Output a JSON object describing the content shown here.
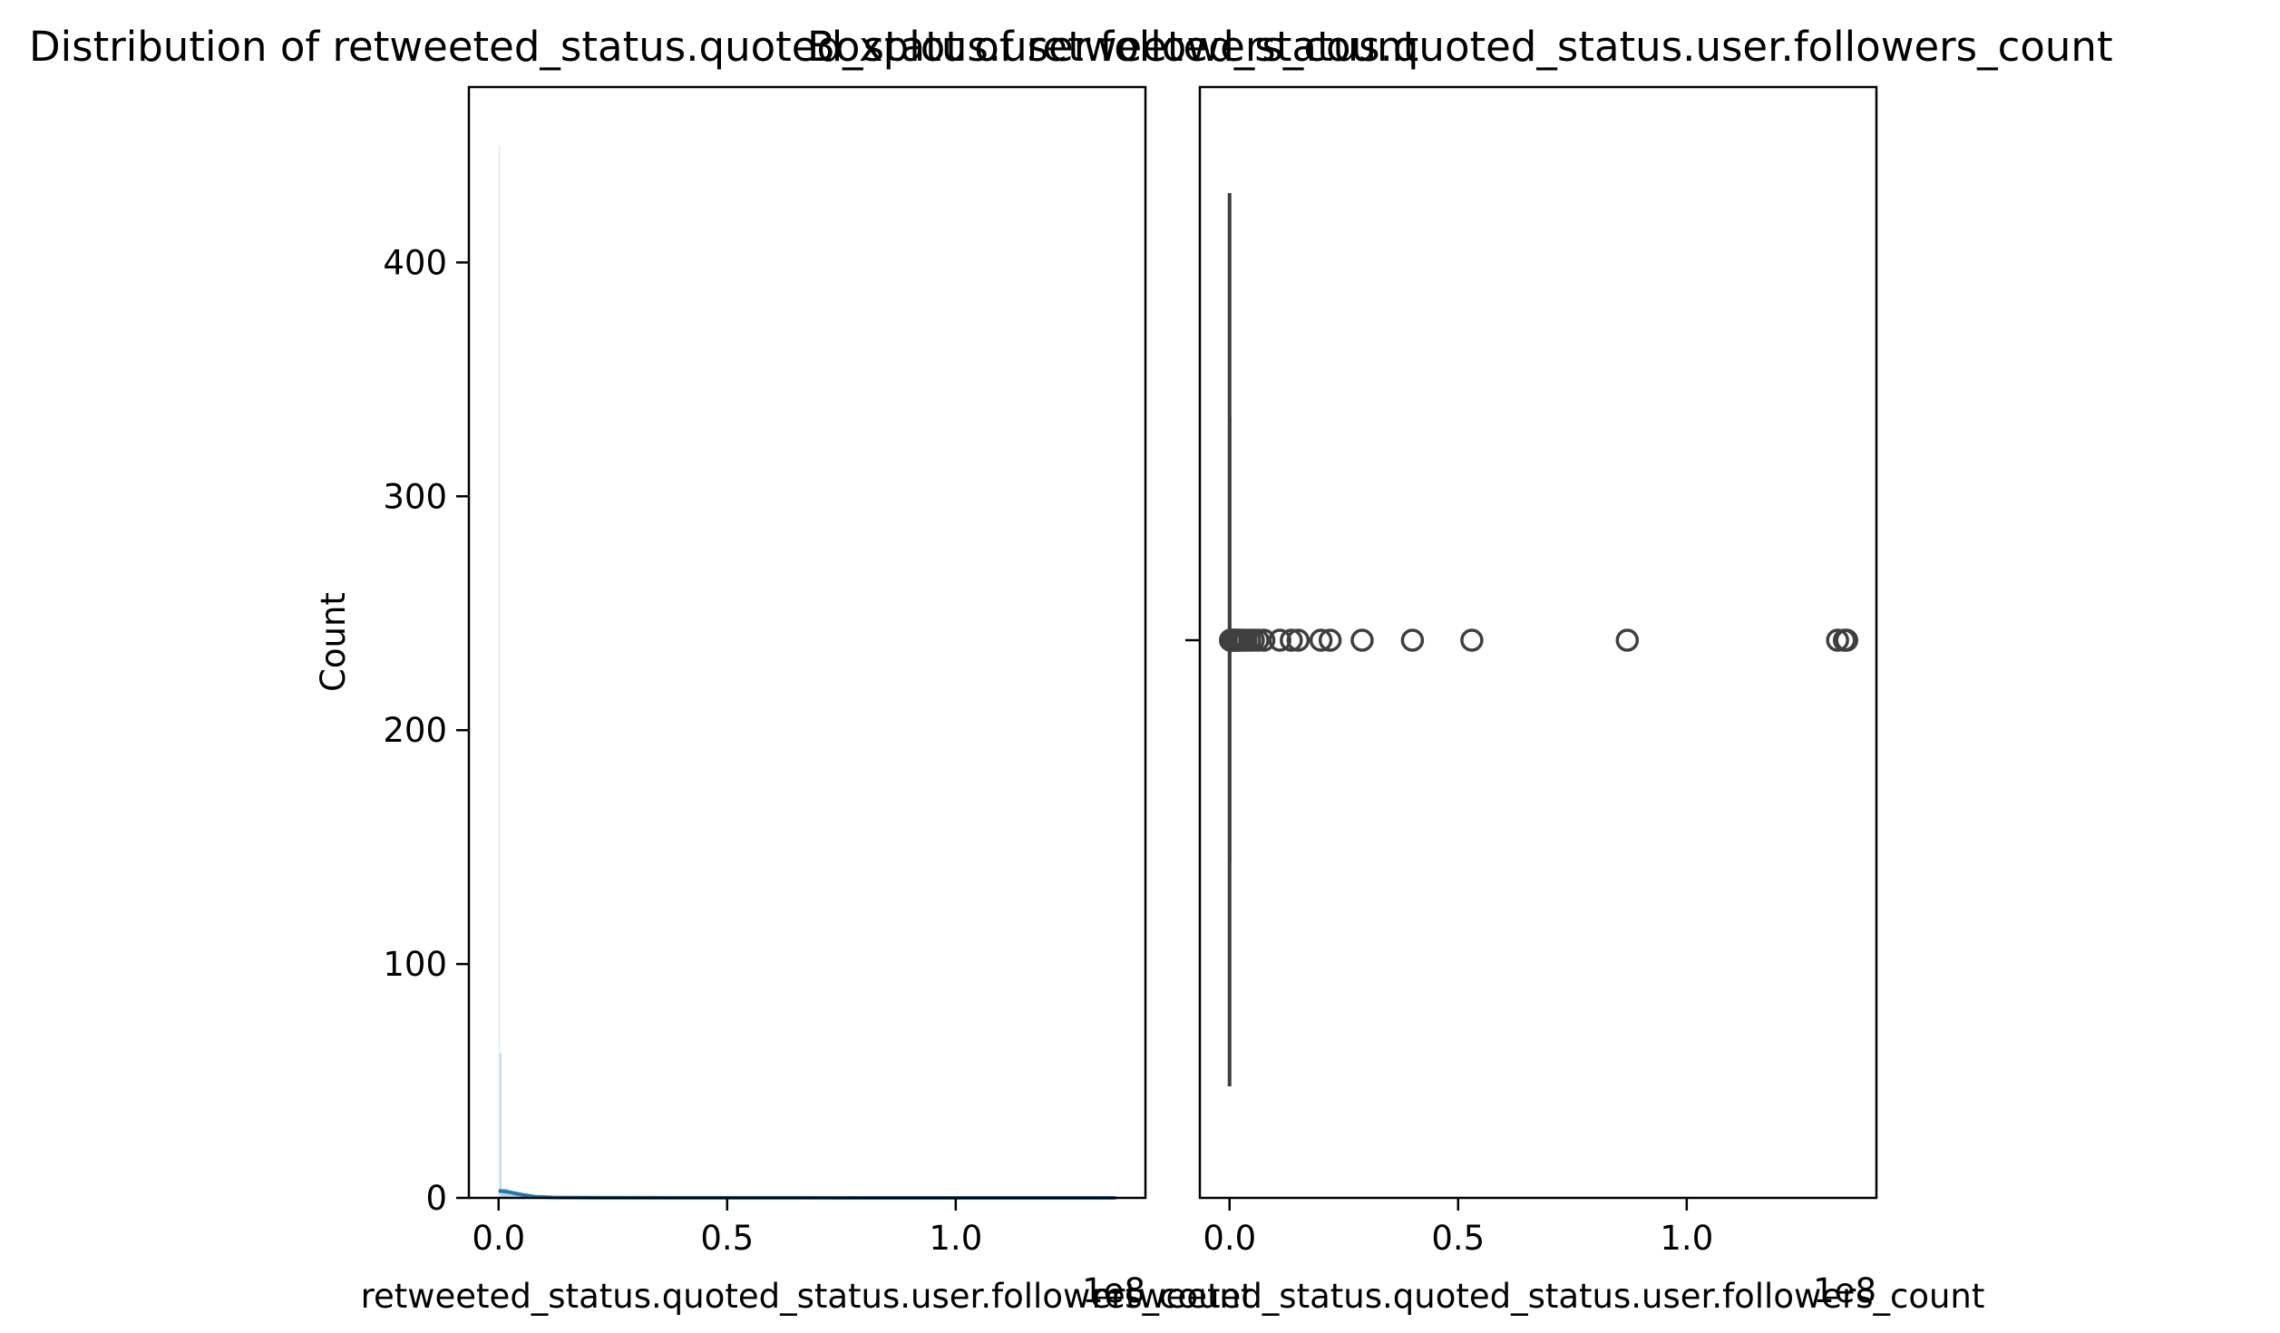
{
  "chart_data": [
    {
      "type": "histogram",
      "title": "Distribution of retweeted_status.quoted_status.user.followers_count",
      "xlabel": "retweeted_status.quoted_status.user.followers_count",
      "ylabel": "Count",
      "x_offset_label": "1e8",
      "xlim": [
        -0.065,
        1.415
      ],
      "ylim": [
        0,
        475
      ],
      "x_ticks": [
        0.0,
        0.5,
        1.0
      ],
      "x_tick_labels": [
        "0.0",
        "0.5",
        "1.0"
      ],
      "y_ticks": [
        0,
        100,
        200,
        300,
        400
      ],
      "y_tick_labels": [
        "0",
        "100",
        "200",
        "300",
        "400"
      ],
      "bars": [
        {
          "x0": 0.0,
          "x1": 0.003,
          "count": 450
        },
        {
          "x0": 0.003,
          "x1": 0.006,
          "count": 62
        },
        {
          "x0": 0.006,
          "x1": 0.02,
          "count": 4
        },
        {
          "x0": 0.02,
          "x1": 0.05,
          "count": 2
        },
        {
          "x0": 0.05,
          "x1": 0.1,
          "count": 1
        }
      ],
      "kde": {
        "x": [
          0.0,
          0.02,
          0.05,
          0.08,
          0.12,
          0.2,
          0.4,
          0.6,
          0.8,
          1.0,
          1.2,
          1.35
        ],
        "y": [
          3,
          2.6,
          1.4,
          0.5,
          0.2,
          0.1,
          0.05,
          0.03,
          0.02,
          0.02,
          0.02,
          0.02
        ]
      },
      "grid": false,
      "color": "#1f77b4"
    },
    {
      "type": "boxplot",
      "title": "Boxplot of retweeted_status.quoted_status.user.followers_count",
      "xlabel": "retweeted_status.quoted_status.user.followers_count",
      "x_offset_label": "1e8",
      "xlim": [
        -0.065,
        1.415
      ],
      "x_ticks": [
        0.0,
        0.5,
        1.0
      ],
      "x_tick_labels": [
        "0.0",
        "0.5",
        "1.0"
      ],
      "box": {
        "q1": 0.0,
        "median": 0.0,
        "q3": 0.0004,
        "whisker_low": 0.0,
        "whisker_high": 0.001
      },
      "outliers": [
        0.002,
        0.004,
        0.006,
        0.008,
        0.01,
        0.012,
        0.015,
        0.018,
        0.021,
        0.025,
        0.03,
        0.036,
        0.044,
        0.052,
        0.062,
        0.075,
        0.11,
        0.135,
        0.15,
        0.2,
        0.22,
        0.29,
        0.4,
        0.53,
        0.87,
        1.33,
        1.345,
        1.35
      ],
      "grid": false,
      "color": "#3f3f3f"
    }
  ]
}
